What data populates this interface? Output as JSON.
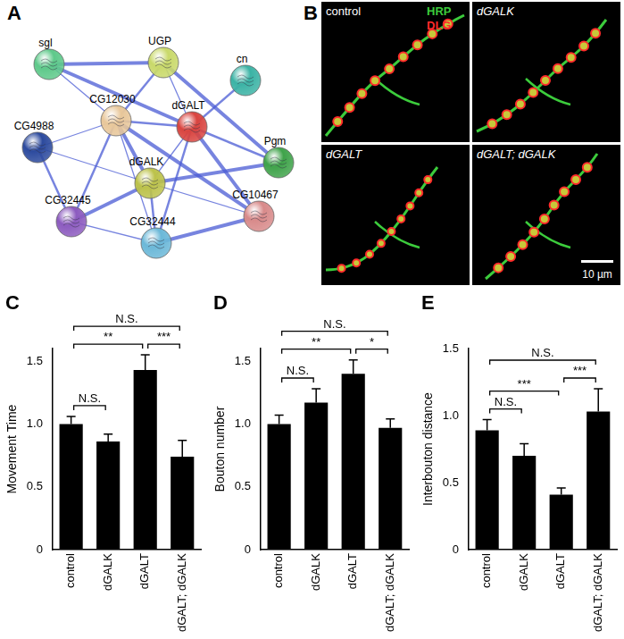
{
  "network": {
    "panel": "A",
    "nodes": [
      "sgl",
      "UGP",
      "cn",
      "CG12030",
      "dGALT",
      "Pgm",
      "CG4988",
      "dGALK",
      "CG10467",
      "CG32445",
      "CG32444"
    ],
    "edges": [
      [
        1,
        0
      ],
      [
        1,
        3
      ],
      [
        1,
        4
      ],
      [
        1,
        5
      ],
      [
        2,
        4
      ],
      [
        0,
        3
      ],
      [
        0,
        4
      ],
      [
        3,
        4
      ],
      [
        3,
        6
      ],
      [
        3,
        7
      ],
      [
        3,
        9
      ],
      [
        3,
        10
      ],
      [
        3,
        8
      ],
      [
        4,
        5
      ],
      [
        4,
        7
      ],
      [
        4,
        8
      ],
      [
        4,
        10
      ],
      [
        7,
        6
      ],
      [
        7,
        9
      ],
      [
        7,
        10
      ],
      [
        7,
        8
      ],
      [
        7,
        5
      ],
      [
        6,
        9
      ],
      [
        9,
        10
      ],
      [
        10,
        8
      ]
    ]
  },
  "micrographs": {
    "panel": "B",
    "images": [
      "control",
      "dGALK",
      "dGALT",
      "dGALT; dGALK"
    ],
    "channels": [
      {
        "name": "HRP",
        "color": "#3ccc3c"
      },
      {
        "name": "DLG",
        "color": "#ff2a2a"
      }
    ],
    "scale_bar": "10 µm"
  },
  "chart_data": [
    {
      "panel": "C",
      "type": "bar",
      "categories": [
        "control",
        "dGALK",
        "dGALT",
        "dGALT; dGALK"
      ],
      "values": [
        1.0,
        0.86,
        1.43,
        0.74
      ],
      "errors": [
        0.06,
        0.06,
        0.12,
        0.13
      ],
      "color": "#000000",
      "y_label": "Movement Time",
      "ylim": [
        0,
        1.6
      ],
      "yticks": [
        0,
        0.5,
        {
          "value": 1,
          "label": "1.0"
        },
        1.5
      ],
      "grid": false,
      "annotations": [
        {
          "from": 0,
          "to": 1,
          "label": "N.S."
        },
        {
          "from": 0,
          "to": 2,
          "label": "**"
        },
        {
          "from": 2,
          "to": 3,
          "label": "***"
        },
        {
          "from": 0,
          "to": 3,
          "label": "N.S."
        }
      ]
    },
    {
      "panel": "D",
      "type": "bar",
      "categories": [
        "control",
        "dGALK",
        "dGALT",
        "dGALT; dGALK"
      ],
      "values": [
        1.0,
        1.17,
        1.4,
        0.97
      ],
      "errors": [
        0.07,
        0.11,
        0.11,
        0.07
      ],
      "color": "#000000",
      "y_label": "Bouton number",
      "ylim": [
        0,
        1.6
      ],
      "yticks": [
        0,
        0.5,
        {
          "value": 1,
          "label": "1.0"
        },
        1.5
      ],
      "grid": false,
      "annotations": [
        {
          "from": 0,
          "to": 1,
          "label": "N.S."
        },
        {
          "from": 0,
          "to": 2,
          "label": "**"
        },
        {
          "from": 2,
          "to": 3,
          "label": "*"
        },
        {
          "from": 0,
          "to": 3,
          "label": "N.S."
        }
      ]
    },
    {
      "panel": "E",
      "type": "bar",
      "categories": [
        "control",
        "dGALK",
        "dGALT",
        "dGALT; dGALK"
      ],
      "values": [
        0.89,
        0.7,
        0.41,
        1.03
      ],
      "errors": [
        0.08,
        0.09,
        0.05,
        0.17
      ],
      "color": "#000000",
      "y_label": "Interbouton distance",
      "ylim": [
        0,
        1.5
      ],
      "yticks": [
        0,
        0.5,
        {
          "value": 1,
          "label": "1.0"
        },
        1.5
      ],
      "grid": false,
      "annotations": [
        {
          "from": 0,
          "to": 1,
          "label": "N.S."
        },
        {
          "from": 0,
          "to": 2,
          "label": "***"
        },
        {
          "from": 2,
          "to": 3,
          "label": "***"
        },
        {
          "from": 0,
          "to": 3,
          "label": "N.S."
        }
      ]
    }
  ]
}
